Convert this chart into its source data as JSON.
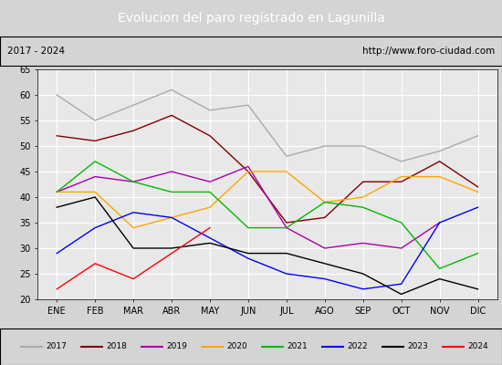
{
  "title": "Evolucion del paro registrado en Lagunilla",
  "subtitle_left": "2017 - 2024",
  "subtitle_right": "http://www.foro-ciudad.com",
  "months": [
    "ENE",
    "FEB",
    "MAR",
    "ABR",
    "MAY",
    "JUN",
    "JUL",
    "AGO",
    "SEP",
    "OCT",
    "NOV",
    "DIC"
  ],
  "series": {
    "2017": {
      "color": "#aaaaaa",
      "data": [
        60,
        55,
        58,
        61,
        57,
        58,
        48,
        50,
        50,
        47,
        49,
        52
      ]
    },
    "2018": {
      "color": "#800000",
      "data": [
        52,
        51,
        53,
        56,
        52,
        45,
        35,
        36,
        43,
        43,
        47,
        42
      ]
    },
    "2019": {
      "color": "#aa00aa",
      "data": [
        41,
        44,
        43,
        45,
        43,
        46,
        34,
        30,
        31,
        30,
        35,
        null
      ]
    },
    "2020": {
      "color": "#ffa500",
      "data": [
        41,
        41,
        34,
        36,
        38,
        45,
        45,
        39,
        40,
        44,
        44,
        41
      ]
    },
    "2021": {
      "color": "#00bb00",
      "data": [
        41,
        47,
        43,
        41,
        41,
        34,
        34,
        39,
        38,
        35,
        26,
        29
      ]
    },
    "2022": {
      "color": "#0000ff",
      "data": [
        29,
        34,
        37,
        36,
        32,
        28,
        25,
        24,
        22,
        23,
        35,
        38
      ]
    },
    "2023": {
      "color": "#000000",
      "data": [
        38,
        40,
        30,
        30,
        31,
        29,
        29,
        27,
        25,
        21,
        24,
        22
      ]
    },
    "2024": {
      "color": "#ff0000",
      "data": [
        22,
        27,
        24,
        29,
        34,
        null,
        null,
        null,
        null,
        null,
        null,
        null
      ]
    }
  },
  "ylim": [
    20,
    65
  ],
  "yticks": [
    20,
    25,
    30,
    35,
    40,
    45,
    50,
    55,
    60,
    65
  ],
  "background_color": "#d4d4d4",
  "plot_background": "#e8e8e8",
  "title_bg": "#4472c4",
  "title_color": "white",
  "header_bg": "#ffffff",
  "grid_color": "#ffffff"
}
